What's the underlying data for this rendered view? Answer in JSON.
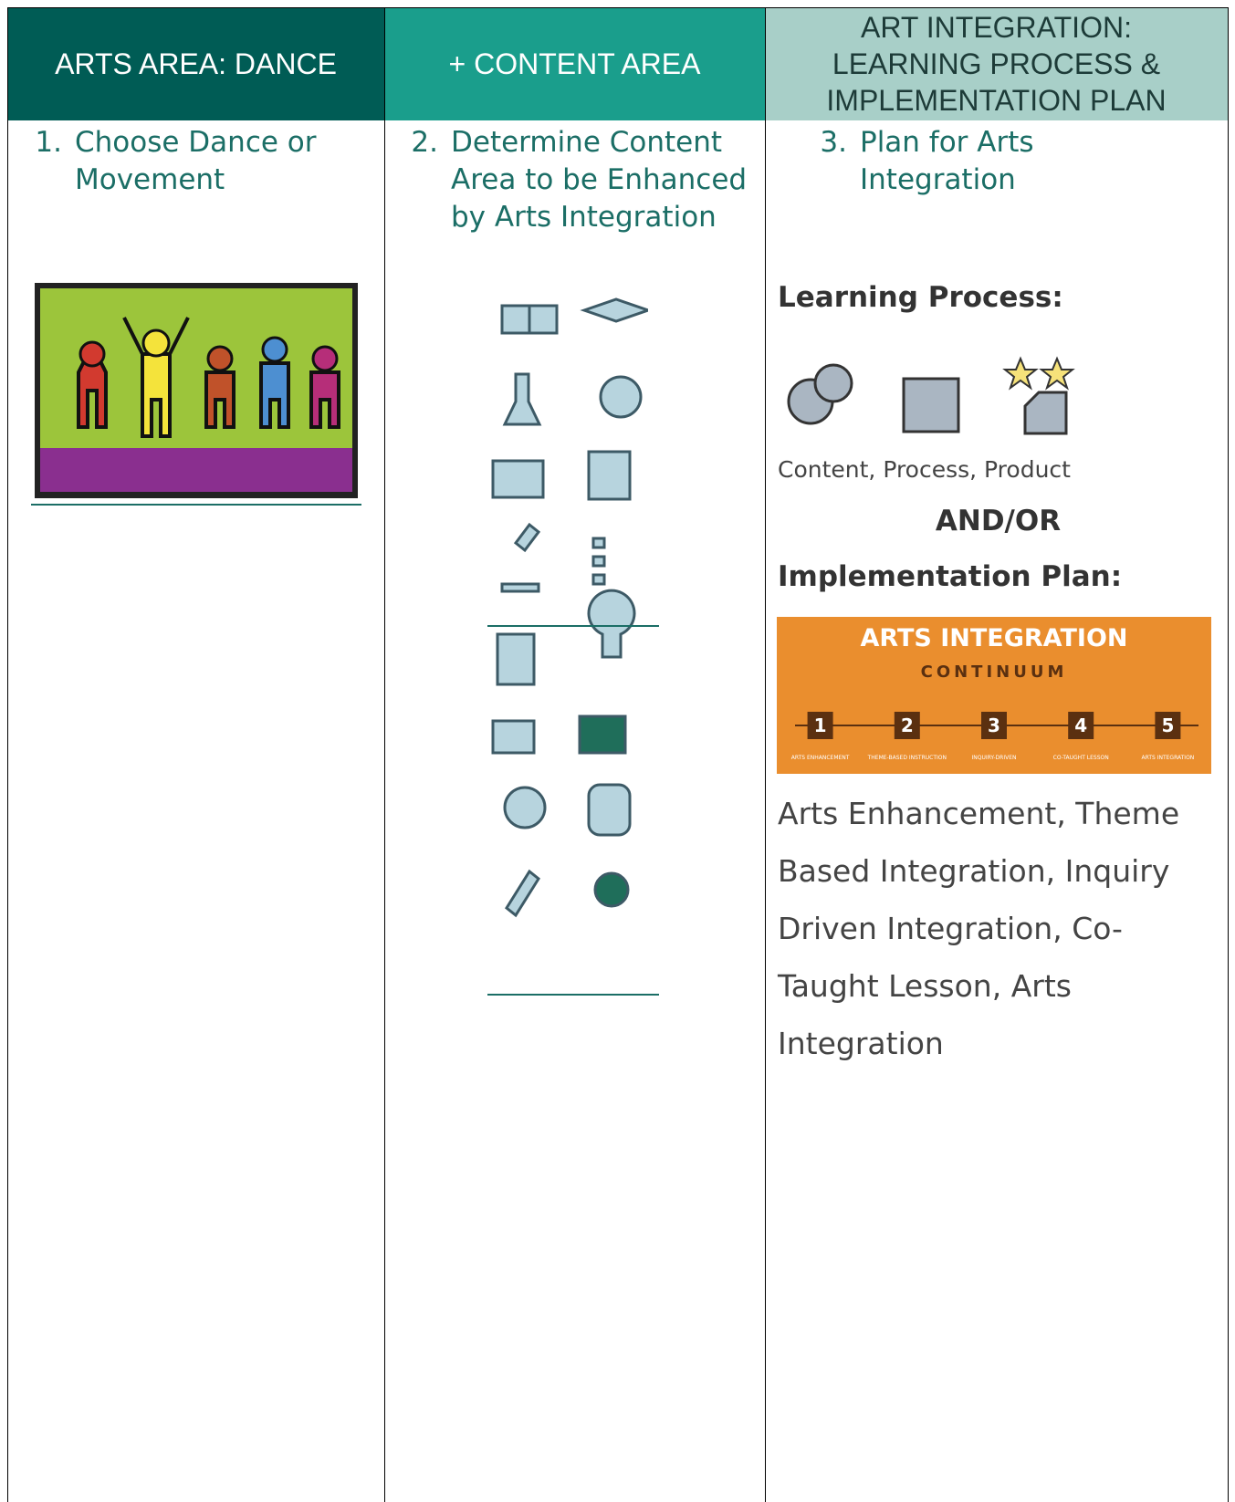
{
  "header": [
    "ARTS AREA: DANCE",
    "+ CONTENT AREA",
    "ART INTEGRATION: LEARNING PROCESS & IMPLEMENTATION PLAN"
  ],
  "steps": [
    {
      "number": "1.",
      "text": "Choose Dance or Movement"
    },
    {
      "number": "2.",
      "text": "Determine Content Area to be Enhanced by Arts Integration"
    },
    {
      "number": "3.",
      "text": "Plan for Arts Integration"
    }
  ],
  "plan": {
    "learning_process": "Learning Process:",
    "learning_caption": "Content, Process, Product",
    "and_or": "AND/OR",
    "implementation": "Implementation Plan:",
    "continuum": {
      "title": "ARTS INTEGRATION",
      "subtitle": "CONTINUUM",
      "steps": [
        "1",
        "2",
        "3",
        "4",
        "5"
      ],
      "labels": [
        "ARTS ENHANCEMENT",
        "THEME-BASED INSTRUCTION",
        "INQUIRY-DRIVEN",
        "CO-TAUGHT LESSON",
        "ARTS INTEGRATION"
      ]
    },
    "implementation_caption": "Arts Enhancement, Theme Based Integration, Inquiry Driven Integration, Co-Taught Lesson, Arts Integration"
  }
}
